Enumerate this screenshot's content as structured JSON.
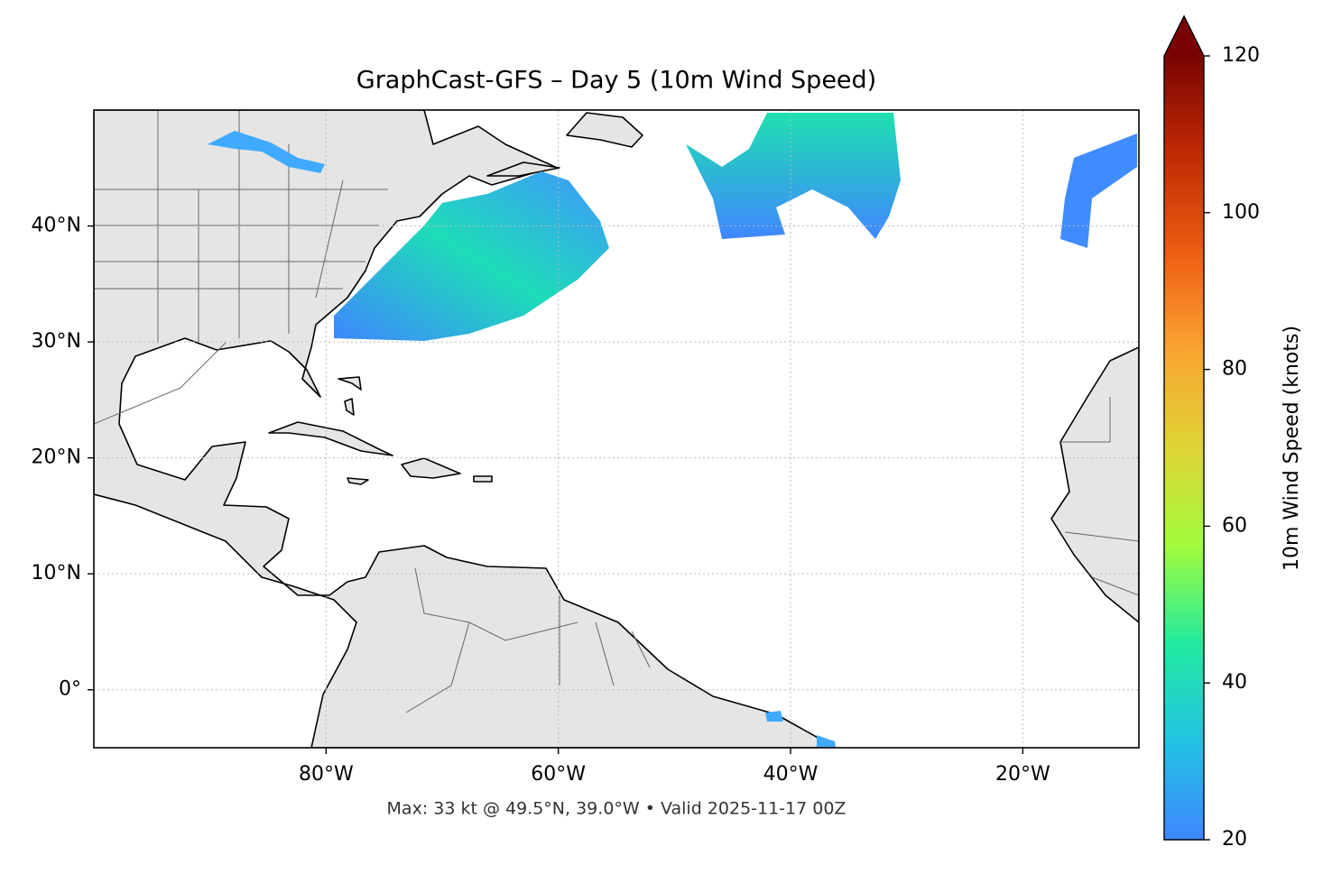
{
  "chart_data": {
    "type": "map",
    "title": "GraphCast-GFS – Day 5 (10m Wind Speed)",
    "annotation": "Max: 33 kt @ 49.5°N, 39.0°W • Valid 2025-11-17 00Z",
    "xlim": [
      -100,
      -10
    ],
    "ylim": [
      -5,
      50
    ],
    "xticks": [
      {
        "value": -80,
        "label": "80°W"
      },
      {
        "value": -60,
        "label": "60°W"
      },
      {
        "value": -40,
        "label": "40°W"
      },
      {
        "value": -20,
        "label": "20°W"
      }
    ],
    "yticks": [
      {
        "value": 0,
        "label": "0°"
      },
      {
        "value": 10,
        "label": "10°N"
      },
      {
        "value": 20,
        "label": "20°N"
      },
      {
        "value": 30,
        "label": "30°N"
      },
      {
        "value": 40,
        "label": "40°N"
      }
    ],
    "grid": true,
    "colorbar": {
      "label": "10m Wind Speed (knots)",
      "lim": [
        20,
        120
      ],
      "ticks": [
        20,
        40,
        60,
        80,
        100,
        120
      ],
      "colors": [
        "#3f86ff",
        "#22c3e3",
        "#22eaa0",
        "#a2fc3c",
        "#dfd435",
        "#f9a532",
        "#ee5c12",
        "#c02a04",
        "#7a0403"
      ],
      "extend": "max"
    }
  }
}
